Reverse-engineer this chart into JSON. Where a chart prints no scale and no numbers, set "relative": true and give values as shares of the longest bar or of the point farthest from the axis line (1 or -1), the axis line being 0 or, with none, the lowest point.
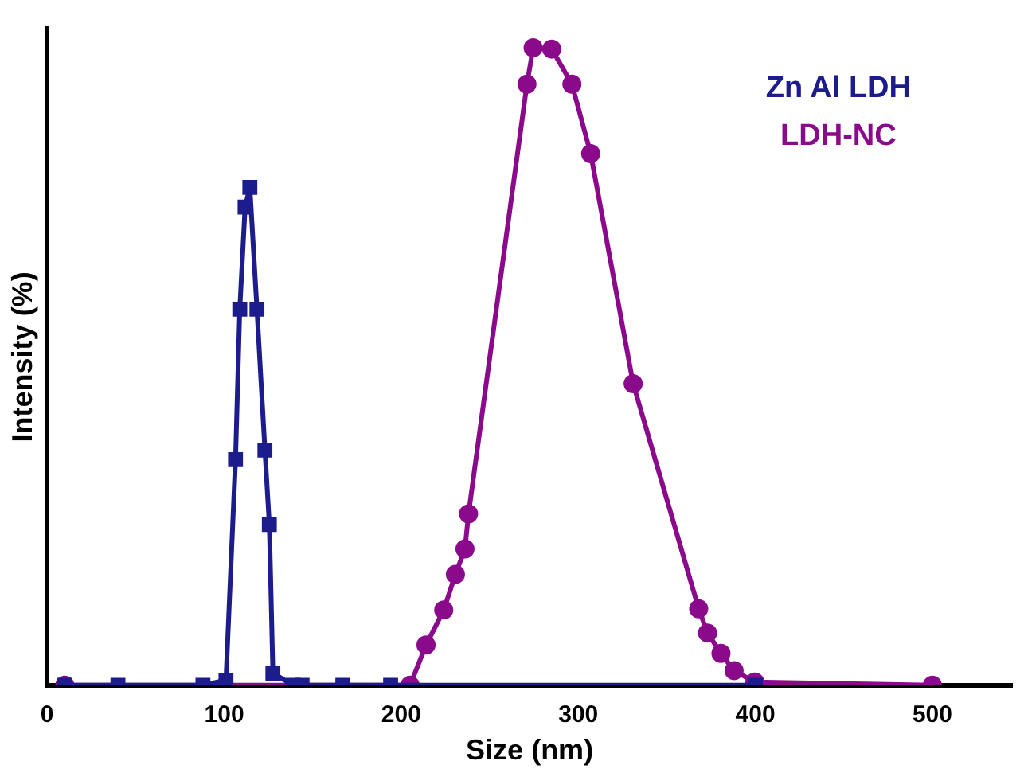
{
  "chart_data": {
    "type": "line",
    "relative": true,
    "xlabel": "Size (nm)",
    "ylabel": "Intensity (%)",
    "xlim": [
      0,
      545
    ],
    "xticks": [
      0,
      100,
      200,
      300,
      400,
      500
    ],
    "grid": false,
    "legend": "top right",
    "series": [
      {
        "name": "Zn Al LDH",
        "color": "#1c1c8c",
        "marker": "square",
        "x": [
          10,
          40,
          88,
          101,
          106.4,
          108.8,
          111.8,
          114.5,
          118.5,
          123,
          125.5,
          127.5,
          139,
          144,
          167,
          194,
          400
        ],
        "values": [
          0,
          0,
          0,
          0.008,
          0.354,
          0.59,
          0.75,
          0.781,
          0.59,
          0.369,
          0.252,
          0.019,
          0,
          0,
          0,
          0,
          0
        ]
      },
      {
        "name": "LDH-NC",
        "color": "#8b0a8b",
        "marker": "circle",
        "x": [
          10,
          205,
          214,
          224,
          230.6,
          236,
          238,
          271,
          274.5,
          285,
          296.4,
          307,
          331,
          368,
          373,
          380.6,
          388,
          399.7,
          500
        ],
        "values": [
          0,
          0,
          0.063,
          0.118,
          0.174,
          0.214,
          0.269,
          0.943,
          1,
          0.998,
          0.943,
          0.834,
          0.473,
          0.12,
          0.082,
          0.05,
          0.023,
          0.005,
          0
        ]
      }
    ]
  }
}
